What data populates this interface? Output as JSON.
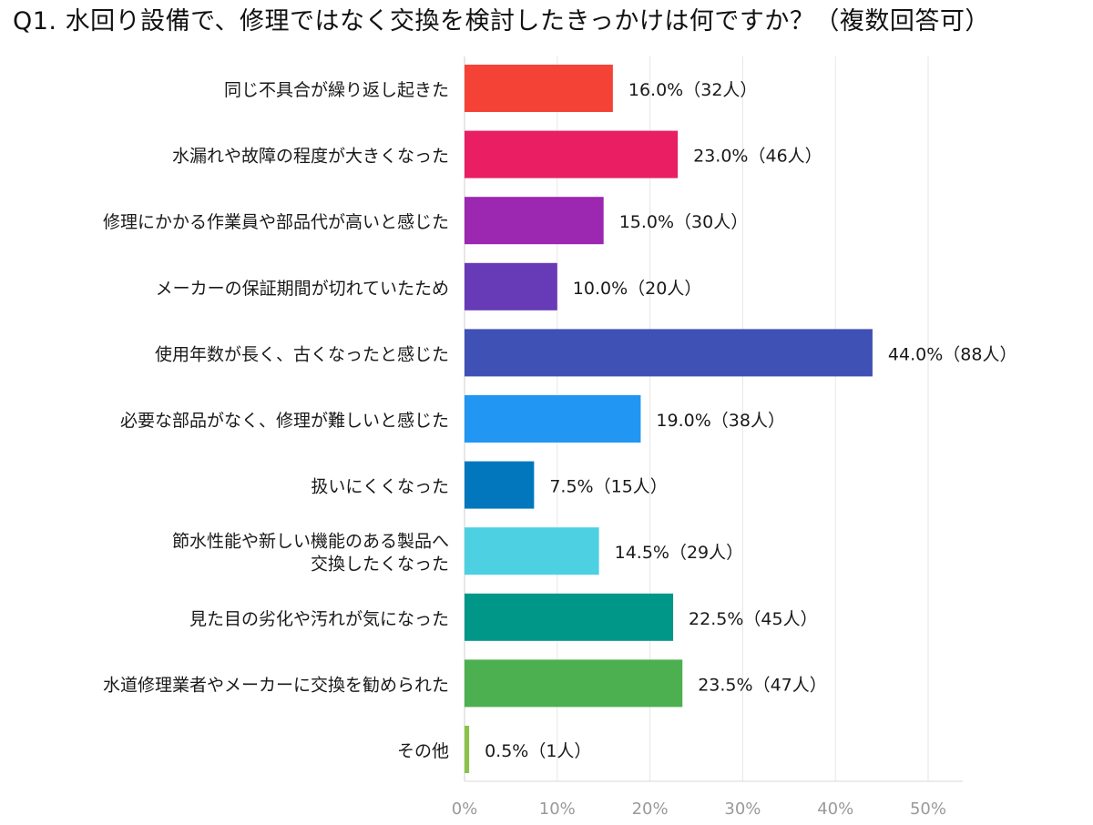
{
  "chart_data": {
    "type": "bar",
    "orientation": "horizontal",
    "title": "Q1. 水回り設備で、修理ではなく交換を検討したきっかけは何ですか？（複数回答可）",
    "categories": [
      [
        "同じ不具合が繰り返し起きた"
      ],
      [
        "水漏れや故障の程度が大きくなった"
      ],
      [
        "修理にかかる作業員や部品代が高いと感じた"
      ],
      [
        "メーカーの保証期間が切れていたため"
      ],
      [
        "使用年数が長く、古くなったと感じた"
      ],
      [
        "必要な部品がなく、修理が難しいと感じた"
      ],
      [
        "扱いにくくなった"
      ],
      [
        "節水性能や新しい機能のある製品へ",
        "交換したくなった"
      ],
      [
        "見た目の劣化や汚れが気になった"
      ],
      [
        "水道修理業者やメーカーに交換を勧められた"
      ],
      [
        "その他"
      ]
    ],
    "values": [
      16.0,
      23.0,
      15.0,
      10.0,
      44.0,
      19.0,
      7.5,
      14.5,
      22.5,
      23.5,
      0.5
    ],
    "data_labels": [
      "16.0%（32人）",
      "23.0%（46人）",
      "15.0%（30人）",
      "10.0%（20人）",
      "44.0%（88人）",
      "19.0%（38人）",
      "7.5%（15人）",
      "14.5%（29人）",
      "22.5%（45人）",
      "23.5%（47人）",
      "0.5%（1人）"
    ],
    "colors": [
      "#f44336",
      "#e91e63",
      "#9c27b0",
      "#673ab7",
      "#3f51b5",
      "#2196f3",
      "#0277bd",
      "#4dd0e1",
      "#009688",
      "#4caf50",
      "#8bc34a"
    ],
    "x_ticks": [
      0,
      10,
      20,
      30,
      40,
      50
    ],
    "x_tick_labels": [
      "0%",
      "10%",
      "20%",
      "30%",
      "40%",
      "50%"
    ],
    "xlim": [
      0,
      53
    ],
    "xlabel": "",
    "ylabel": "",
    "grid": true,
    "legend": "none"
  }
}
